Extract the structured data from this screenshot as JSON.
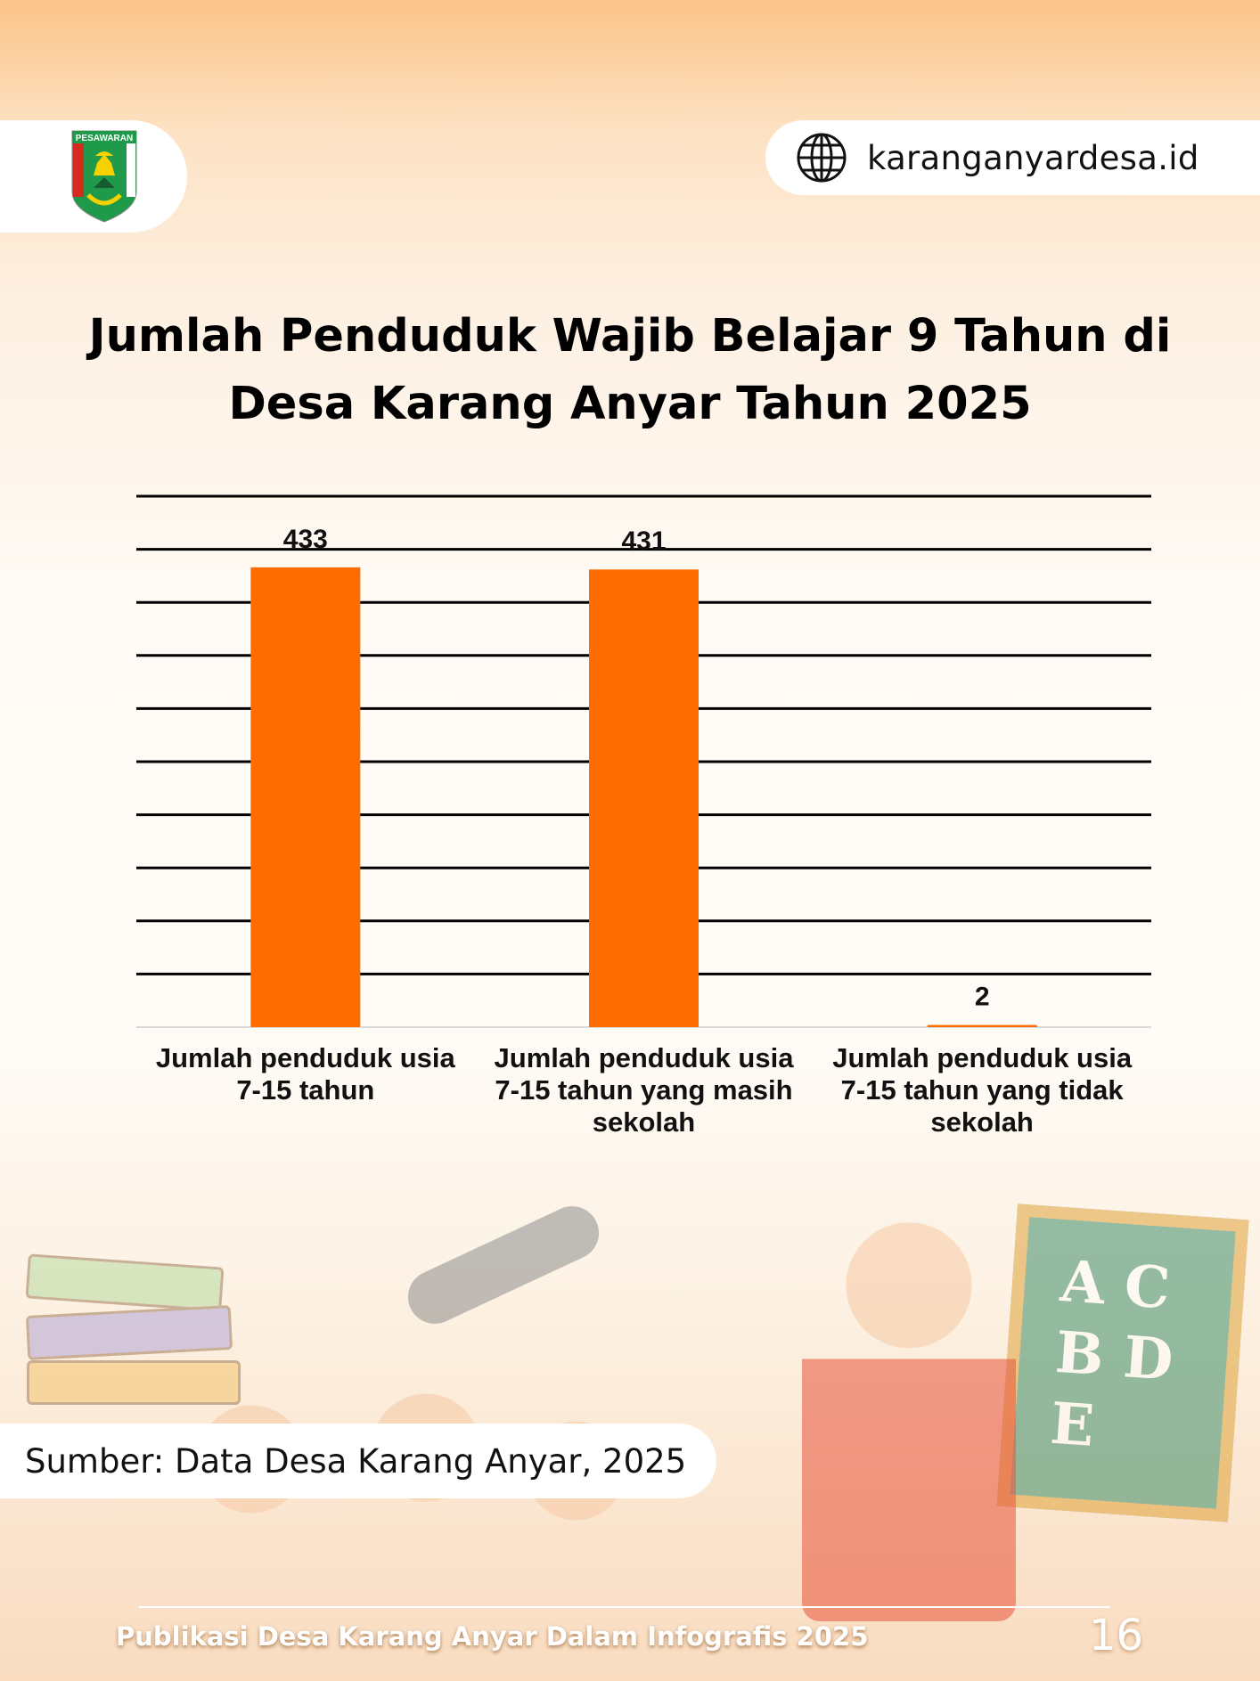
{
  "header": {
    "logo_text": "PESAWARAN",
    "website": "karanganyardesa.id",
    "globe_icon": "globe-icon"
  },
  "title_lines": [
    "Jumlah Penduduk Wajib Belajar 9 Tahun di",
    "Desa Karang Anyar Tahun 2025"
  ],
  "chart_data": {
    "type": "bar",
    "title": "Jumlah Penduduk Wajib Belajar 9 Tahun di Desa Karang Anyar Tahun 2025",
    "categories": [
      [
        "Jumlah penduduk usia",
        "7-15 tahun"
      ],
      [
        "Jumlah penduduk usia",
        "7-15 tahun yang masih",
        "sekolah"
      ],
      [
        "Jumlah penduduk usia",
        "7-15 tahun yang tidak",
        "sekolah"
      ]
    ],
    "values": [
      433,
      431,
      2
    ],
    "data_labels": [
      "433",
      "431",
      "2"
    ],
    "ylim": [
      0,
      500
    ],
    "grid_step": 50,
    "grid": true,
    "y_tick_labels": false,
    "bar_color": "#ff6d00"
  },
  "source": "Sumber: Data Desa Karang Anyar, 2025",
  "footer": {
    "text": "Publikasi Desa Karang Anyar Dalam Infografis 2025",
    "page": "16"
  }
}
